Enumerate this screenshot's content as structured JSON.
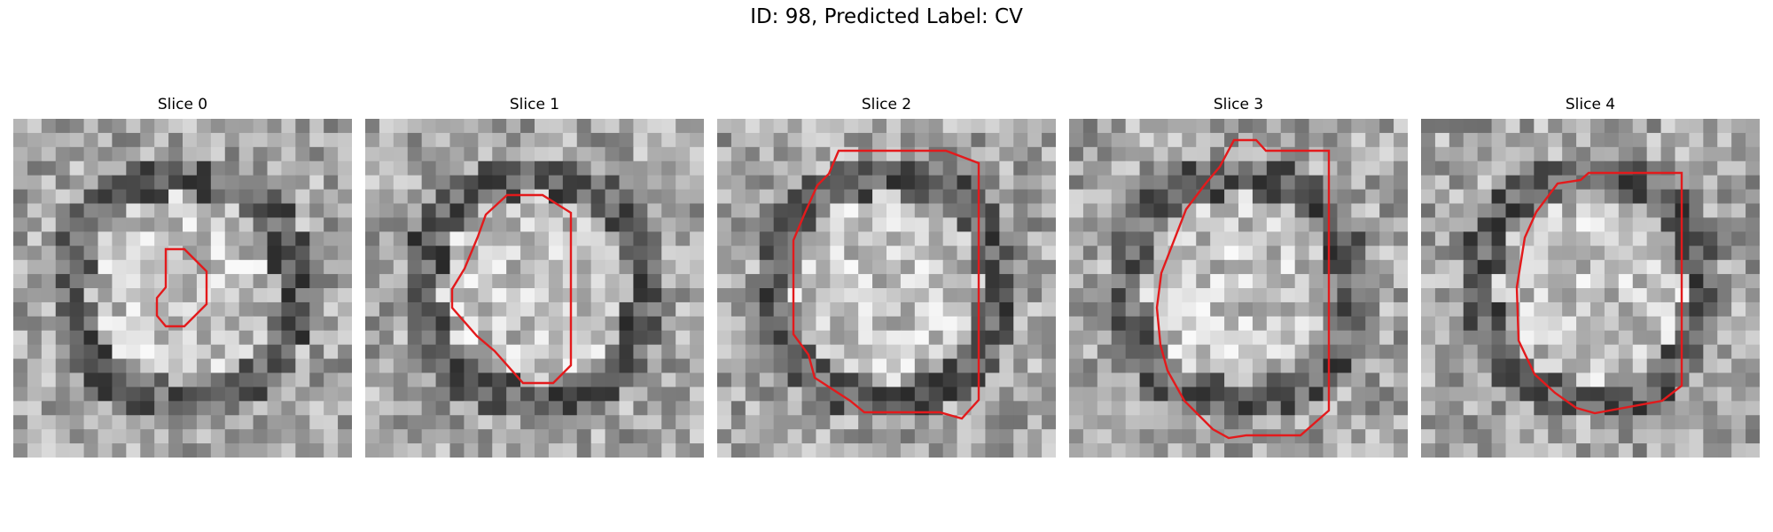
{
  "figure": {
    "title": "ID: 98, Predicted Label: CV",
    "contour_color": "#e31a1c"
  },
  "slices": [
    {
      "title": "Slice 0"
    },
    {
      "title": "Slice 1"
    },
    {
      "title": "Slice 2"
    },
    {
      "title": "Slice 3"
    },
    {
      "title": "Slice 4"
    }
  ]
}
